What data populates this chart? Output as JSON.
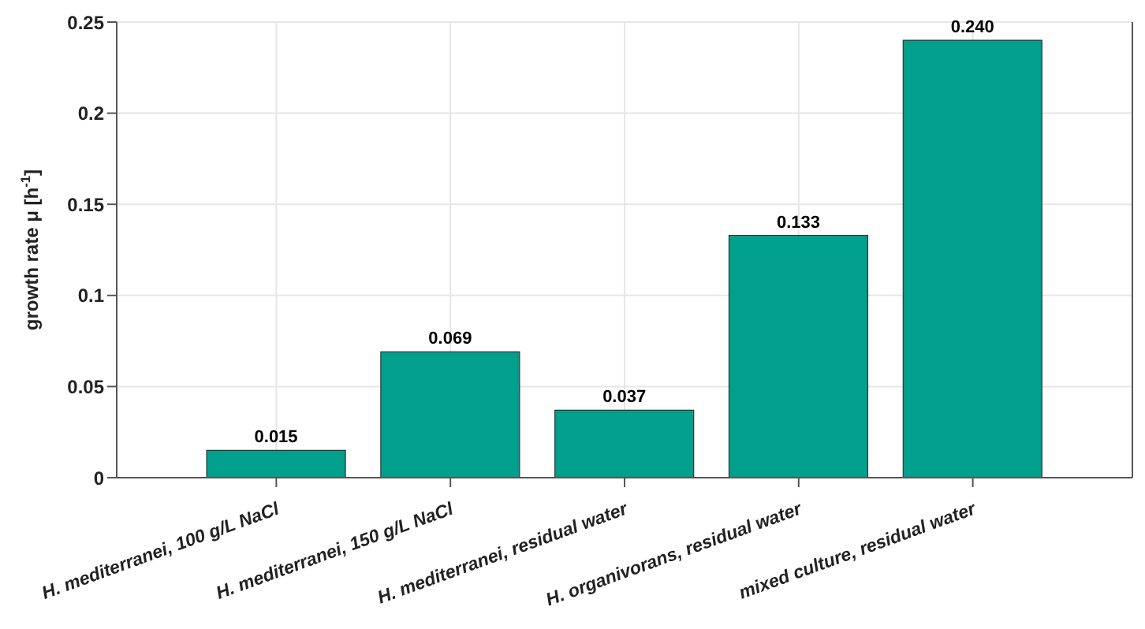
{
  "chart_data": {
    "type": "bar",
    "ylabel": "growth rate μ [h$^{-1}$]",
    "categories": [
      "H. mediterranei, 100 g/L NaCl",
      "H. mediterranei, 150 g/L NaCl",
      "H. mediterranei, residual water",
      "H. organivorans, residual water",
      "mixed culture, residual water"
    ],
    "values": [
      0.015,
      0.069,
      0.037,
      0.133,
      0.24
    ],
    "value_labels": [
      "0.015",
      "0.069",
      "0.037",
      "0.133",
      "0.240"
    ],
    "color": "#00a08c",
    "ylim": [
      0,
      0.25
    ],
    "yticks": [
      0,
      0.05,
      0.1,
      0.15,
      0.2,
      0.25
    ],
    "grid": true
  }
}
